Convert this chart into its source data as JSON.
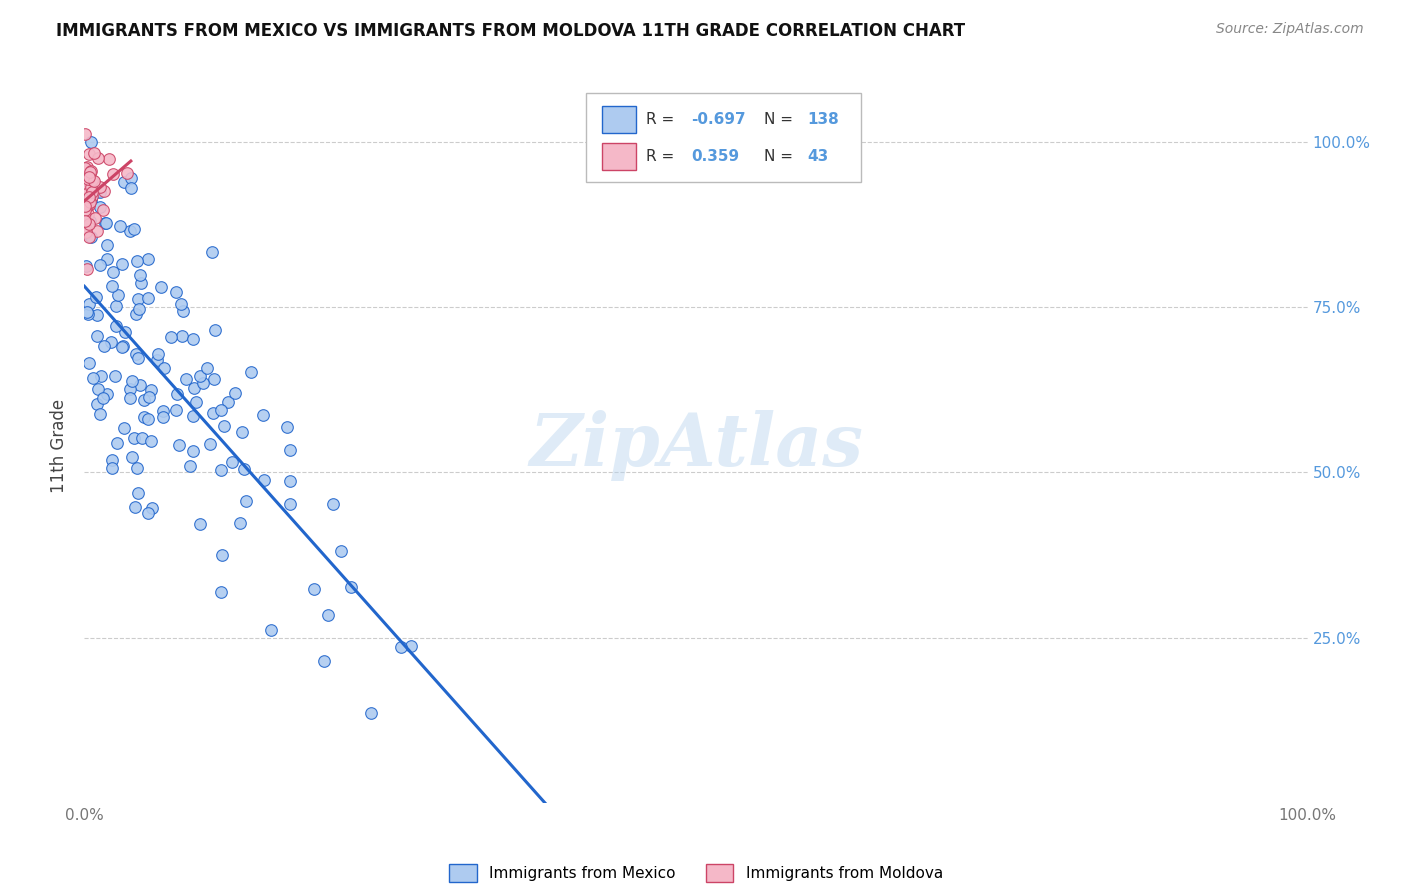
{
  "title": "IMMIGRANTS FROM MEXICO VS IMMIGRANTS FROM MOLDOVA 11TH GRADE CORRELATION CHART",
  "source": "Source: ZipAtlas.com",
  "ylabel": "11th Grade",
  "legend_r_mexico": "-0.697",
  "legend_n_mexico": "138",
  "legend_r_moldova": "0.359",
  "legend_n_moldova": "43",
  "mexico_color": "#aecbf0",
  "moldova_color": "#f5b8c8",
  "mexico_line_color": "#2266cc",
  "moldova_line_color": "#cc4466",
  "watermark": "ZipAtlas",
  "legend_label_mexico": "Immigrants from Mexico",
  "legend_label_moldova": "Immigrants from Moldova",
  "title_fontsize": 12,
  "source_fontsize": 10,
  "axis_color": "#777777",
  "grid_color": "#cccccc",
  "right_tick_color": "#5599dd"
}
